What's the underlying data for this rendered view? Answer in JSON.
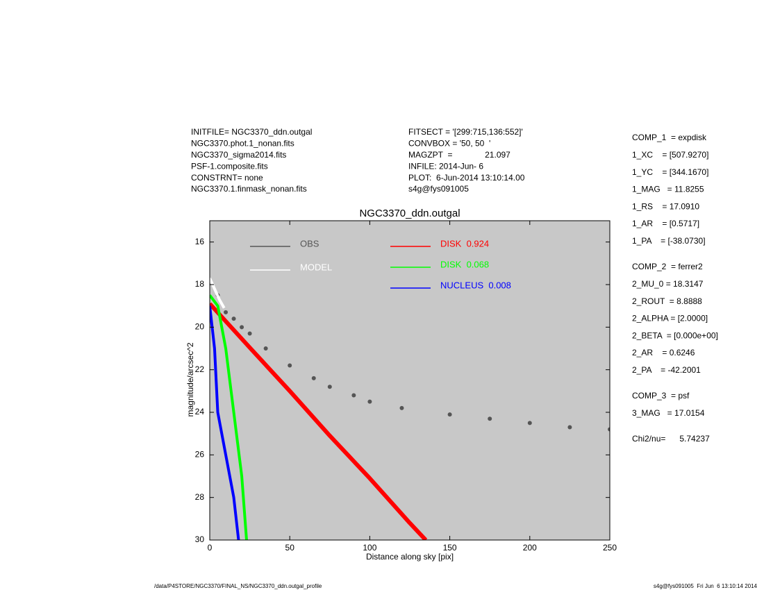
{
  "header": {
    "left": [
      "INITFILE= NGC3370_ddn.outgal",
      "NGC3370.phot.1_nonan.fits",
      "NGC3370_sigma2014.fits",
      "PSF-1.composite.fits",
      "CONSTRNT= none",
      "NGC3370.1.finmask_nonan.fits"
    ],
    "middle": [
      "FITSECT = '[299:715,136:552]'",
      "CONVBOX = '50, 50  '",
      "MAGZPT  =              21.097",
      "INFILE: 2014-Jun- 6",
      "PLOT:  6-Jun-2014 13:10:14.00",
      "s4g@fys091005"
    ],
    "params": [
      [
        "COMP_1  = expdisk",
        "1_XC    = [507.9270]",
        "1_YC    = [344.1670]",
        "1_MAG   = 11.8255",
        "1_RS    = 17.0910",
        "1_AR    = [0.5717]",
        "1_PA    = [-38.0730]"
      ],
      [
        "COMP_2  = ferrer2",
        "2_MU_0 = 18.3147",
        "2_ROUT  = 8.8888",
        "2_ALPHA = [2.0000]",
        "2_BETA  = [0.000e+00]",
        "2_AR    = 0.6246",
        "2_PA    = -42.2001"
      ],
      [
        "COMP_3  = psf",
        "3_MAG   = 17.0154"
      ],
      [
        "Chi2/nu=      5.74237"
      ]
    ]
  },
  "footer": {
    "left": "/data/P4STORE/NGC3370/FINAL_NS/NGC3370_ddn.outgal_profile",
    "right": "s4g@fys091005  Fri Jun  6 13:10:14 2014"
  },
  "chart_data": {
    "type": "scatter",
    "title": "NGC3370_ddn.outgal",
    "x_label": "Distance along sky [pix]",
    "y_label": "magnitude/arcsec^2",
    "xlim": [
      0,
      250
    ],
    "xticks": [
      0,
      50,
      100,
      150,
      200,
      250
    ],
    "ylim": [
      30,
      15
    ],
    "yticks": [
      16,
      18,
      20,
      22,
      24,
      26,
      28,
      30
    ],
    "background": "#c8c8c8",
    "series": [
      {
        "name": "OBS",
        "color": "#555555",
        "style": "dots",
        "x": [
          5,
          10,
          15,
          20,
          25,
          35,
          50,
          65,
          75,
          90,
          100,
          120,
          150,
          175,
          200,
          225,
          250
        ],
        "values": [
          18.5,
          19.3,
          19.6,
          20.0,
          20.3,
          21.0,
          21.8,
          22.4,
          22.8,
          23.2,
          23.5,
          23.8,
          24.1,
          24.3,
          24.5,
          24.7,
          24.8
        ]
      },
      {
        "name": "MODEL",
        "color": "#ffffff",
        "style": "line",
        "x": [
          0,
          3,
          6,
          9
        ],
        "values": [
          17.7,
          18.2,
          18.7,
          19.1
        ]
      },
      {
        "name": "DISK  0.924",
        "color": "#ff0000",
        "style": "line",
        "x": [
          0,
          25,
          50,
          75,
          100,
          125,
          135
        ],
        "values": [
          18.9,
          20.96,
          23.0,
          25.1,
          27.1,
          29.2,
          30
        ]
      },
      {
        "name": "DISK  0.068",
        "color": "#00ff00",
        "style": "line",
        "x": [
          0,
          5,
          10,
          15,
          20,
          23
        ],
        "values": [
          18.5,
          19.0,
          21.0,
          24.0,
          27.0,
          30
        ]
      },
      {
        "name": "NUCLEUS  0.008",
        "color": "#0000ff",
        "style": "line",
        "x": [
          0,
          3,
          5,
          10,
          15,
          18
        ],
        "values": [
          19.0,
          21.0,
          24.0,
          26.0,
          28.0,
          30
        ]
      }
    ]
  }
}
